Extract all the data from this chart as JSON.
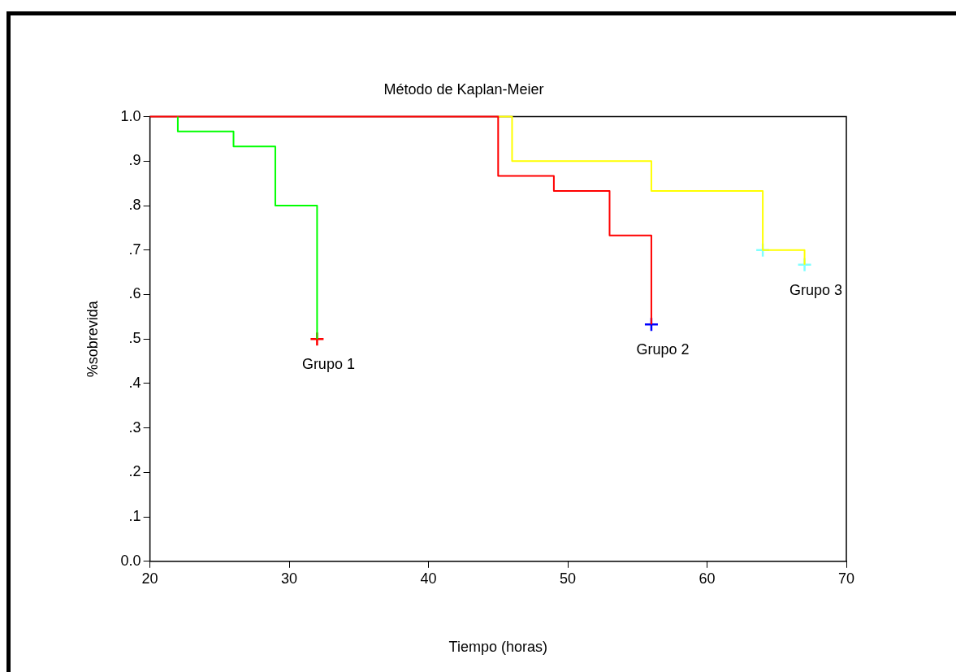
{
  "chart_data": {
    "type": "step",
    "title": "Método de Kaplan-Meier",
    "xlabel": "Tiempo (horas)",
    "ylabel": "%sobrevida",
    "xlim": [
      20,
      70
    ],
    "xticks": [
      20,
      30,
      40,
      50,
      60,
      70
    ],
    "ylim": [
      0,
      1
    ],
    "yticks": [
      {
        "value": 0,
        "label": "0.0"
      },
      {
        "value": 0.1,
        "label": ".1"
      },
      {
        "value": 0.2,
        "label": ".2"
      },
      {
        "value": 0.3,
        "label": ".3"
      },
      {
        "value": 0.4,
        "label": ".4"
      },
      {
        "value": 0.5,
        "label": ".5"
      },
      {
        "value": 0.6,
        "label": ".6"
      },
      {
        "value": 0.7,
        "label": ".7"
      },
      {
        "value": 0.8,
        "label": ".8"
      },
      {
        "value": 0.9,
        "label": ".9"
      },
      {
        "value": 1,
        "label": "1.0"
      }
    ],
    "grid": false,
    "legend": false,
    "series": [
      {
        "name": "Grupo 1",
        "color": "#00ff00",
        "x": [
          22,
          22,
          26,
          29,
          32
        ],
        "values": [
          1,
          0.967,
          0.933,
          0.8,
          0.5
        ],
        "marker": "none"
      },
      {
        "name": "Grupo 2",
        "color": "#ff0000",
        "x": [
          20,
          45,
          49,
          53,
          56
        ],
        "values": [
          1,
          0.867,
          0.833,
          0.733,
          0.533
        ],
        "marker": "none"
      },
      {
        "name": "Grupo 3",
        "color": "#ffff00",
        "x": [
          45,
          46,
          56,
          64,
          67
        ],
        "values": [
          1,
          0.9,
          0.833,
          0.7,
          0.667
        ],
        "marker": "none"
      },
      {
        "type": "scatter",
        "color": "#ff0000",
        "x": [
          32
        ],
        "values": [
          0.5
        ],
        "marker": "cross"
      },
      {
        "type": "scatter",
        "color": "#0000ff",
        "x": [
          56
        ],
        "values": [
          0.533
        ],
        "marker": "cross"
      },
      {
        "type": "scatter",
        "color": "#80ffff",
        "x": [
          64,
          67
        ],
        "values": [
          0.7,
          0.667
        ],
        "marker": "cross"
      }
    ]
  }
}
